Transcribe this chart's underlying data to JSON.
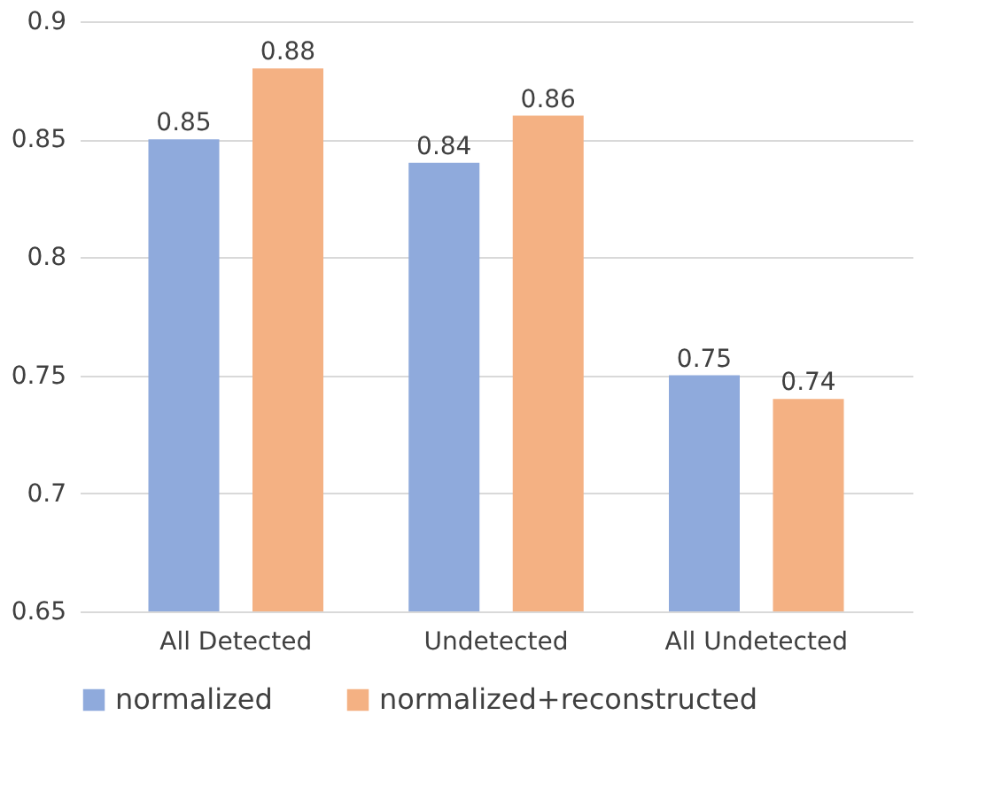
{
  "chart_data": {
    "type": "bar",
    "categories": [
      "All Detected",
      "Undetected",
      "All Undetected"
    ],
    "series": [
      {
        "name": "normalized",
        "color": "#8faadc",
        "values": [
          0.85,
          0.84,
          0.75
        ]
      },
      {
        "name": "normalized+reconstructed",
        "color": "#f4b183",
        "values": [
          0.88,
          0.86,
          0.74
        ]
      }
    ],
    "ylim": [
      0.65,
      0.9
    ],
    "yticks": [
      0.65,
      0.7,
      0.75,
      0.8,
      0.85,
      0.9
    ],
    "grid": "y",
    "legend": "bottom",
    "data_labels": true
  }
}
